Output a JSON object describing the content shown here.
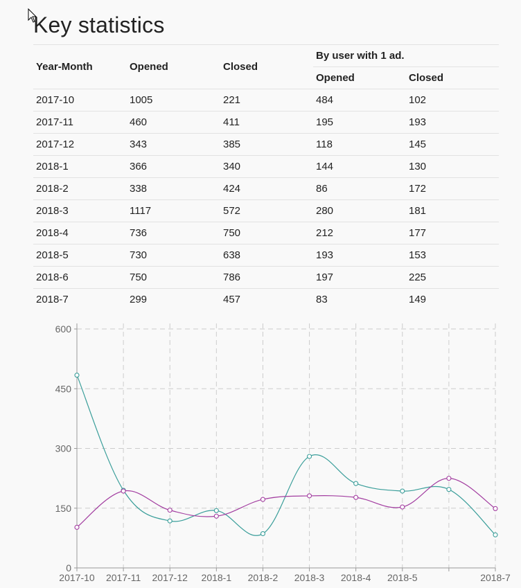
{
  "page": {
    "title": "Key statistics"
  },
  "table": {
    "headers": {
      "year_month": "Year-Month",
      "opened": "Opened",
      "closed": "Closed",
      "group": "By user with 1 ad.",
      "sub_opened": "Opened",
      "sub_closed": "Closed"
    },
    "rows": [
      [
        "2017-10",
        "1005",
        "221",
        "484",
        "102"
      ],
      [
        "2017-11",
        "460",
        "411",
        "195",
        "193"
      ],
      [
        "2017-12",
        "343",
        "385",
        "118",
        "145"
      ],
      [
        "2018-1",
        "366",
        "340",
        "144",
        "130"
      ],
      [
        "2018-2",
        "338",
        "424",
        "86",
        "172"
      ],
      [
        "2018-3",
        "1117",
        "572",
        "280",
        "181"
      ],
      [
        "2018-4",
        "736",
        "750",
        "212",
        "177"
      ],
      [
        "2018-5",
        "730",
        "638",
        "193",
        "153"
      ],
      [
        "2018-6",
        "750",
        "786",
        "197",
        "225"
      ],
      [
        "2018-7",
        "299",
        "457",
        "83",
        "149"
      ]
    ]
  },
  "chart_data": {
    "type": "line",
    "categories": [
      "2017-10",
      "2017-11",
      "2017-12",
      "2018-1",
      "2018-2",
      "2018-3",
      "2018-4",
      "2018-5",
      "2018-6",
      "2018-7"
    ],
    "tick_labels": [
      "2017-10",
      "2017-11",
      "2017-12",
      "2018-1",
      "2018-2",
      "2018-3",
      "2018-4",
      "2018-5",
      "",
      "2018-7"
    ],
    "series": [
      {
        "color": "#3a9e9a",
        "values": [
          484,
          195,
          118,
          144,
          86,
          280,
          212,
          193,
          197,
          83
        ]
      },
      {
        "color": "#a23da0",
        "values": [
          102,
          193,
          145,
          130,
          172,
          181,
          177,
          153,
          225,
          149
        ]
      }
    ],
    "ylim": [
      0,
      600
    ],
    "yticks": [
      "0",
      "150",
      "300",
      "450",
      "600"
    ],
    "grid": true,
    "curve": "smooth"
  }
}
